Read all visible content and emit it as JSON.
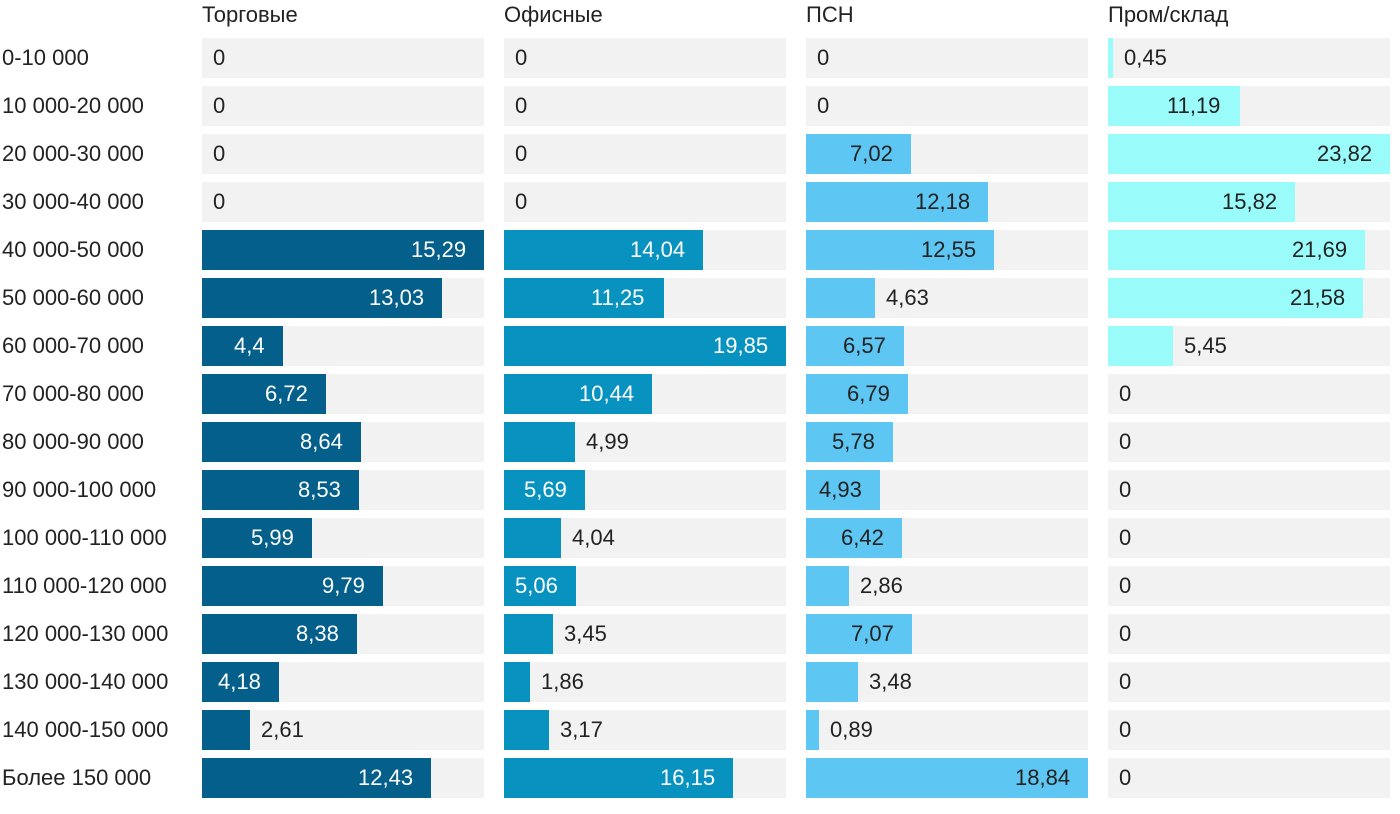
{
  "chart_data": {
    "type": "bar",
    "orientation": "horizontal",
    "layout": "small-multiples",
    "categories": [
      "0-10 000",
      "10 000-20 000",
      "20 000-30 000",
      "30 000-40 000",
      "40 000-50 000",
      "50 000-60 000",
      "60 000-70 000",
      "70 000-80 000",
      "80 000-90 000",
      "90 000-100 000",
      "100 000-110 000",
      "110 000-120 000",
      "120 000-130 000",
      "130 000-140 000",
      "140 000-150 000",
      "Более 150 000"
    ],
    "series": [
      {
        "name": "Торговые",
        "color": "#045f8a",
        "text_on_bar": "#ffffff",
        "values": [
          0,
          0,
          0,
          0,
          15.29,
          13.03,
          4.4,
          6.72,
          8.64,
          8.53,
          5.99,
          9.79,
          8.38,
          4.18,
          2.61,
          12.43
        ],
        "labels": [
          "0",
          "0",
          "0",
          "0",
          "15,29",
          "13,03",
          "4,4",
          "6,72",
          "8,64",
          "8,53",
          "5,99",
          "9,79",
          "8,38",
          "4,18",
          "2,61",
          "12,43"
        ],
        "max": 15.29
      },
      {
        "name": "Офисные",
        "color": "#0892c0",
        "text_on_bar": "#ffffff",
        "values": [
          0,
          0,
          0,
          0,
          14.04,
          11.25,
          19.85,
          10.44,
          4.99,
          5.69,
          4.04,
          5.06,
          3.45,
          1.86,
          3.17,
          16.15
        ],
        "labels": [
          "0",
          "0",
          "0",
          "0",
          "14,04",
          "11,25",
          "19,85",
          "10,44",
          "4,99",
          "5,69",
          "4,04",
          "5,06",
          "3,45",
          "1,86",
          "3,17",
          "16,15"
        ],
        "max": 19.85
      },
      {
        "name": "ПСН",
        "color": "#5ec6f2",
        "text_on_bar": "#222222",
        "values": [
          0,
          0,
          7.02,
          12.18,
          12.55,
          4.63,
          6.57,
          6.79,
          5.78,
          4.93,
          6.42,
          2.86,
          7.07,
          3.48,
          0.89,
          18.84
        ],
        "labels": [
          "0",
          "0",
          "7,02",
          "12,18",
          "12,55",
          "4,63",
          "6,57",
          "6,79",
          "5,78",
          "4,93",
          "6,42",
          "2,86",
          "7,07",
          "3,48",
          "0,89",
          "18,84"
        ],
        "max": 18.84
      },
      {
        "name": "Пром/склад",
        "color": "#99fcfa",
        "text_on_bar": "#222222",
        "values": [
          0.45,
          11.19,
          23.82,
          15.82,
          21.69,
          21.58,
          5.45,
          0,
          0,
          0,
          0,
          0,
          0,
          0,
          0,
          0
        ],
        "labels": [
          "0,45",
          "11,19",
          "23,82",
          "15,82",
          "21,69",
          "21,58",
          "5,45",
          "0",
          "0",
          "0",
          "0",
          "0",
          "0",
          "0",
          "0",
          "0"
        ],
        "max": 23.82
      }
    ],
    "track_color": "#f2f2f2",
    "grid": false,
    "legend": "none"
  }
}
